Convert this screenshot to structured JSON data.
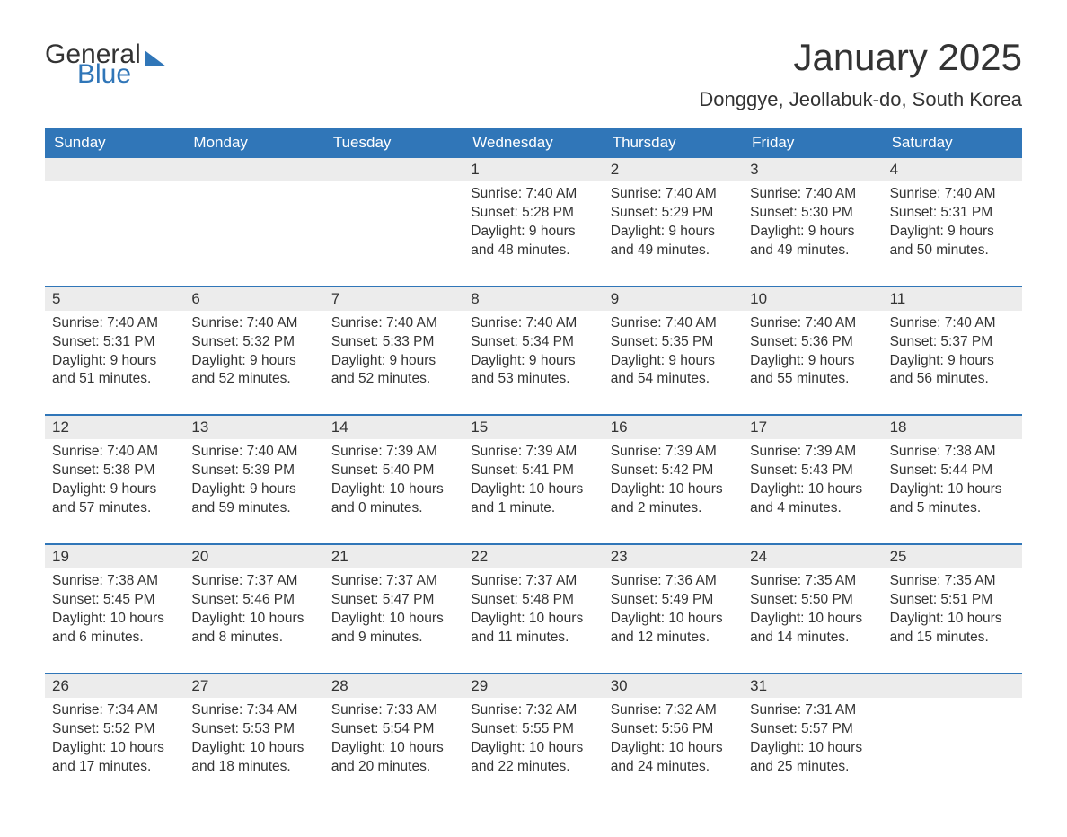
{
  "brand": {
    "part1": "General",
    "part2": "Blue"
  },
  "title": "January 2025",
  "location": "Donggye, Jeollabuk-do, South Korea",
  "colors": {
    "header_bg": "#3076b8",
    "header_text": "#ffffff",
    "daynum_bg": "#ececec",
    "text": "#333333",
    "week_border": "#3076b8",
    "background": "#ffffff"
  },
  "typography": {
    "title_fontsize": 42,
    "location_fontsize": 22,
    "dayheader_fontsize": 17,
    "body_fontsize": 15.5
  },
  "day_headers": [
    "Sunday",
    "Monday",
    "Tuesday",
    "Wednesday",
    "Thursday",
    "Friday",
    "Saturday"
  ],
  "labels": {
    "sunrise": "Sunrise:",
    "sunset": "Sunset:",
    "daylight": "Daylight:"
  },
  "weeks": [
    [
      null,
      null,
      null,
      {
        "n": "1",
        "sunrise": "7:40 AM",
        "sunset": "5:28 PM",
        "daylight": "9 hours and 48 minutes."
      },
      {
        "n": "2",
        "sunrise": "7:40 AM",
        "sunset": "5:29 PM",
        "daylight": "9 hours and 49 minutes."
      },
      {
        "n": "3",
        "sunrise": "7:40 AM",
        "sunset": "5:30 PM",
        "daylight": "9 hours and 49 minutes."
      },
      {
        "n": "4",
        "sunrise": "7:40 AM",
        "sunset": "5:31 PM",
        "daylight": "9 hours and 50 minutes."
      }
    ],
    [
      {
        "n": "5",
        "sunrise": "7:40 AM",
        "sunset": "5:31 PM",
        "daylight": "9 hours and 51 minutes."
      },
      {
        "n": "6",
        "sunrise": "7:40 AM",
        "sunset": "5:32 PM",
        "daylight": "9 hours and 52 minutes."
      },
      {
        "n": "7",
        "sunrise": "7:40 AM",
        "sunset": "5:33 PM",
        "daylight": "9 hours and 52 minutes."
      },
      {
        "n": "8",
        "sunrise": "7:40 AM",
        "sunset": "5:34 PM",
        "daylight": "9 hours and 53 minutes."
      },
      {
        "n": "9",
        "sunrise": "7:40 AM",
        "sunset": "5:35 PM",
        "daylight": "9 hours and 54 minutes."
      },
      {
        "n": "10",
        "sunrise": "7:40 AM",
        "sunset": "5:36 PM",
        "daylight": "9 hours and 55 minutes."
      },
      {
        "n": "11",
        "sunrise": "7:40 AM",
        "sunset": "5:37 PM",
        "daylight": "9 hours and 56 minutes."
      }
    ],
    [
      {
        "n": "12",
        "sunrise": "7:40 AM",
        "sunset": "5:38 PM",
        "daylight": "9 hours and 57 minutes."
      },
      {
        "n": "13",
        "sunrise": "7:40 AM",
        "sunset": "5:39 PM",
        "daylight": "9 hours and 59 minutes."
      },
      {
        "n": "14",
        "sunrise": "7:39 AM",
        "sunset": "5:40 PM",
        "daylight": "10 hours and 0 minutes."
      },
      {
        "n": "15",
        "sunrise": "7:39 AM",
        "sunset": "5:41 PM",
        "daylight": "10 hours and 1 minute."
      },
      {
        "n": "16",
        "sunrise": "7:39 AM",
        "sunset": "5:42 PM",
        "daylight": "10 hours and 2 minutes."
      },
      {
        "n": "17",
        "sunrise": "7:39 AM",
        "sunset": "5:43 PM",
        "daylight": "10 hours and 4 minutes."
      },
      {
        "n": "18",
        "sunrise": "7:38 AM",
        "sunset": "5:44 PM",
        "daylight": "10 hours and 5 minutes."
      }
    ],
    [
      {
        "n": "19",
        "sunrise": "7:38 AM",
        "sunset": "5:45 PM",
        "daylight": "10 hours and 6 minutes."
      },
      {
        "n": "20",
        "sunrise": "7:37 AM",
        "sunset": "5:46 PM",
        "daylight": "10 hours and 8 minutes."
      },
      {
        "n": "21",
        "sunrise": "7:37 AM",
        "sunset": "5:47 PM",
        "daylight": "10 hours and 9 minutes."
      },
      {
        "n": "22",
        "sunrise": "7:37 AM",
        "sunset": "5:48 PM",
        "daylight": "10 hours and 11 minutes."
      },
      {
        "n": "23",
        "sunrise": "7:36 AM",
        "sunset": "5:49 PM",
        "daylight": "10 hours and 12 minutes."
      },
      {
        "n": "24",
        "sunrise": "7:35 AM",
        "sunset": "5:50 PM",
        "daylight": "10 hours and 14 minutes."
      },
      {
        "n": "25",
        "sunrise": "7:35 AM",
        "sunset": "5:51 PM",
        "daylight": "10 hours and 15 minutes."
      }
    ],
    [
      {
        "n": "26",
        "sunrise": "7:34 AM",
        "sunset": "5:52 PM",
        "daylight": "10 hours and 17 minutes."
      },
      {
        "n": "27",
        "sunrise": "7:34 AM",
        "sunset": "5:53 PM",
        "daylight": "10 hours and 18 minutes."
      },
      {
        "n": "28",
        "sunrise": "7:33 AM",
        "sunset": "5:54 PM",
        "daylight": "10 hours and 20 minutes."
      },
      {
        "n": "29",
        "sunrise": "7:32 AM",
        "sunset": "5:55 PM",
        "daylight": "10 hours and 22 minutes."
      },
      {
        "n": "30",
        "sunrise": "7:32 AM",
        "sunset": "5:56 PM",
        "daylight": "10 hours and 24 minutes."
      },
      {
        "n": "31",
        "sunrise": "7:31 AM",
        "sunset": "5:57 PM",
        "daylight": "10 hours and 25 minutes."
      },
      null
    ]
  ]
}
